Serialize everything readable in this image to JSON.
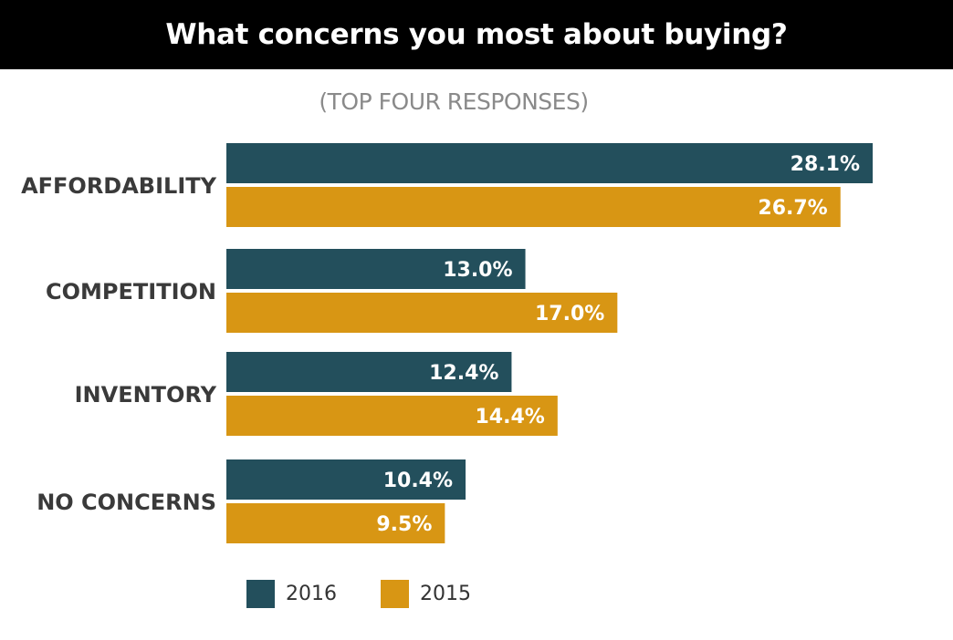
{
  "chart_data": {
    "type": "bar",
    "orientation": "horizontal",
    "title": "What concerns you most about buying?",
    "subtitle": "(TOP FOUR RESPONSES)",
    "categories": [
      "AFFORDABILITY",
      "COMPETITION",
      "INVENTORY",
      "NO CONCERNS"
    ],
    "series": [
      {
        "name": "2016",
        "color": "#234f5c",
        "values": [
          28.1,
          13.0,
          12.4,
          10.4
        ],
        "labels": [
          "28.1%",
          "13.0%",
          "12.4%",
          "10.4%"
        ]
      },
      {
        "name": "2015",
        "color": "#d89614",
        "values": [
          26.7,
          17.0,
          14.4,
          9.5
        ],
        "labels": [
          "26.7%",
          "17.0%",
          "14.4%",
          "9.5%"
        ]
      }
    ],
    "xlim": [
      0,
      28.1
    ],
    "grid": false,
    "legend_position": "bottom"
  }
}
